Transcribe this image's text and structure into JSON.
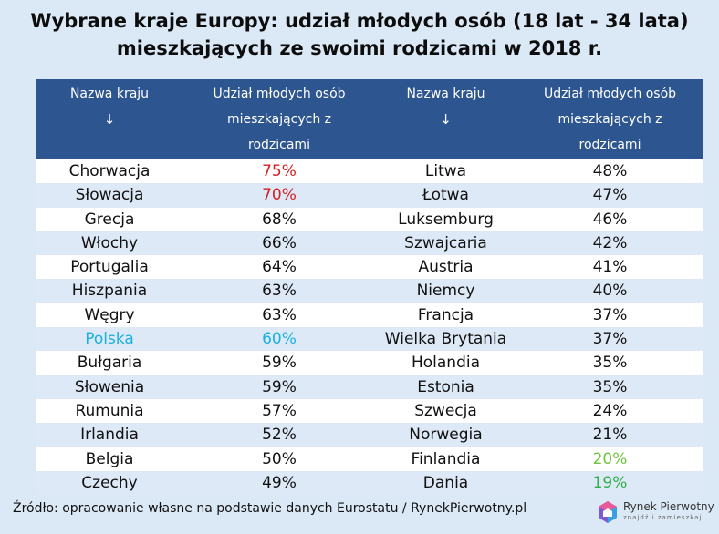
{
  "title_line1": "Wybrane kraje Europy: udział młodych osób (18 lat - 34 lata)",
  "title_line2": "mieszkających ze swoimi rodzicami w 2018 r.",
  "headers": {
    "country": "Nazwa kraju",
    "arrow": "↓",
    "share_line1": "Udział młodych osób",
    "share_line2": "mieszkających z",
    "share_line3": "rodzicami"
  },
  "colors": {
    "header_bg": "#2d5690",
    "highlight_red": "#d42020",
    "highlight_cyan": "#1ab0e0",
    "highlight_green": "#6ec43c",
    "highlight_green_dark": "#2fae4a"
  },
  "chart_data": {
    "type": "table",
    "title": "Wybrane kraje Europy: udział młodych osób (18 lat - 34 lata) mieszkających ze swoimi rodzicami w 2018 r.",
    "columns": [
      "Nazwa kraju",
      "Udział młodych osób mieszkających z rodzicami"
    ],
    "left": [
      {
        "country": "Chorwacja",
        "value": "75%",
        "highlight": "red"
      },
      {
        "country": "Słowacja",
        "value": "70%",
        "highlight": "red"
      },
      {
        "country": "Grecja",
        "value": "68%"
      },
      {
        "country": "Włochy",
        "value": "66%"
      },
      {
        "country": "Portugalia",
        "value": "64%"
      },
      {
        "country": "Hiszpania",
        "value": "63%"
      },
      {
        "country": "Węgry",
        "value": "63%"
      },
      {
        "country": "Polska",
        "value": "60%",
        "highlight": "cyan",
        "country_highlight": "cyan"
      },
      {
        "country": "Bułgaria",
        "value": "59%"
      },
      {
        "country": "Słowenia",
        "value": "59%"
      },
      {
        "country": "Rumunia",
        "value": "57%"
      },
      {
        "country": "Irlandia",
        "value": "52%"
      },
      {
        "country": "Belgia",
        "value": "50%"
      },
      {
        "country": "Czechy",
        "value": "49%"
      }
    ],
    "right": [
      {
        "country": "Litwa",
        "value": "48%"
      },
      {
        "country": "Łotwa",
        "value": "47%"
      },
      {
        "country": "Luksemburg",
        "value": "46%"
      },
      {
        "country": "Szwajcaria",
        "value": "42%"
      },
      {
        "country": "Austria",
        "value": "41%"
      },
      {
        "country": "Niemcy",
        "value": "40%"
      },
      {
        "country": "Francja",
        "value": "37%"
      },
      {
        "country": "Wielka Brytania",
        "value": "37%"
      },
      {
        "country": "Holandia",
        "value": "35%"
      },
      {
        "country": "Estonia",
        "value": "35%"
      },
      {
        "country": "Szwecja",
        "value": "24%"
      },
      {
        "country": "Norwegia",
        "value": "21%"
      },
      {
        "country": "Finlandia",
        "value": "20%",
        "highlight": "green"
      },
      {
        "country": "Dania",
        "value": "19%",
        "highlight": "green_dark"
      }
    ]
  },
  "footer": "Źródło: opracowanie własne na podstawie danych Eurostatu / RynekPierwotny.pl",
  "logo": {
    "name": "Rynek Pierwotny",
    "tagline": "znajdź i zamieszkaj"
  }
}
